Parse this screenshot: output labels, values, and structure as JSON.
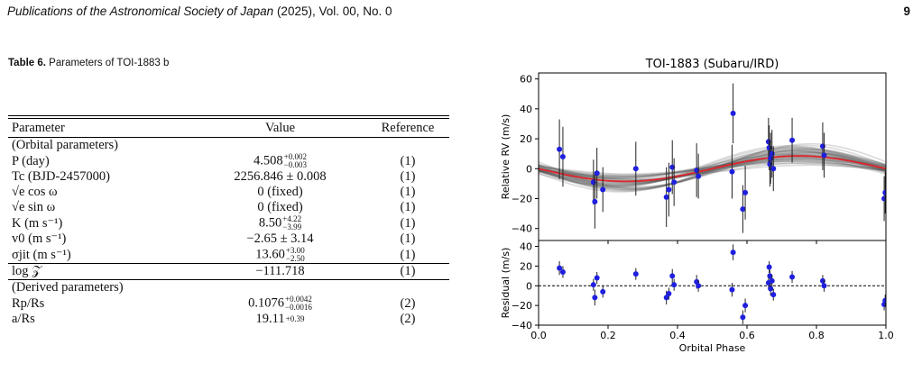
{
  "header": {
    "journal": "Publications of the Astronomical Society of Japan",
    "details": "(2025), Vol. 00, No. 0",
    "page": "9"
  },
  "table": {
    "label": "Table 6.",
    "caption": "Parameters of TOI-1883 b",
    "columns": [
      "Parameter",
      "Value",
      "Reference"
    ],
    "rows": [
      {
        "param": "(Orbital parameters)",
        "value": "",
        "ref": ""
      },
      {
        "param": "P (day)",
        "value": "4.508",
        "sup": "+0.002",
        "sub": "−0.003",
        "ref": "(1)"
      },
      {
        "param": "Tc (BJD-2457000)",
        "value": "2256.846 ± 0.008",
        "ref": "(1)"
      },
      {
        "param": "√e cos ω",
        "value": "0 (fixed)",
        "ref": "(1)"
      },
      {
        "param": "√e sin ω",
        "value": "0 (fixed)",
        "ref": "(1)"
      },
      {
        "param": "K (m s⁻¹)",
        "value": "8.50",
        "sup": "+4.22",
        "sub": "−3.99",
        "ref": "(1)"
      },
      {
        "param": "v0 (m s⁻¹)",
        "value": "−2.65 ± 3.14",
        "ref": "(1)"
      },
      {
        "param": "σjit (m s⁻¹)",
        "value": "13.60",
        "sup": "+3.00",
        "sub": "−2.50",
        "ref": "(1)"
      },
      {
        "param": "log 𝒵",
        "value": "−111.718",
        "ref": "(1)",
        "separator": true
      },
      {
        "param": "(Derived parameters)",
        "value": "",
        "ref": "",
        "separator": true
      },
      {
        "param": "Rp/Rs",
        "value": "0.1076",
        "sup": "+0.0042",
        "sub": "−0.0016",
        "ref": "(2)"
      },
      {
        "param": "a/Rs",
        "value": "19.11",
        "sup": "+0.39",
        "sub": "",
        "ref": "(2)"
      }
    ]
  },
  "chart_data": {
    "type": "scatter",
    "title": "TOI-1883 (Subaru/IRD)",
    "xlabel": "Orbital Phase",
    "panels": [
      {
        "name": "rv",
        "ylabel": "Relative RV (m/s)",
        "ylim": [
          -48,
          64
        ],
        "yticks": [
          -40,
          -20,
          0,
          20,
          40,
          60
        ],
        "points": [
          {
            "x": 0.06,
            "y": 13,
            "err": 20
          },
          {
            "x": 0.07,
            "y": 8,
            "err": 20
          },
          {
            "x": 0.158,
            "y": -9,
            "err": 15
          },
          {
            "x": 0.162,
            "y": -22,
            "err": 18
          },
          {
            "x": 0.168,
            "y": -3,
            "err": 17
          },
          {
            "x": 0.185,
            "y": -14,
            "err": 15
          },
          {
            "x": 0.28,
            "y": 0,
            "err": 18
          },
          {
            "x": 0.368,
            "y": -19,
            "err": 20
          },
          {
            "x": 0.375,
            "y": -14,
            "err": 18
          },
          {
            "x": 0.385,
            "y": 1,
            "err": 18
          },
          {
            "x": 0.39,
            "y": -9,
            "err": 16
          },
          {
            "x": 0.455,
            "y": -1,
            "err": 18
          },
          {
            "x": 0.46,
            "y": -5,
            "err": 15
          },
          {
            "x": 0.557,
            "y": -2,
            "err": 18
          },
          {
            "x": 0.56,
            "y": 37,
            "err": 20
          },
          {
            "x": 0.588,
            "y": -27,
            "err": 16
          },
          {
            "x": 0.595,
            "y": -16,
            "err": 18
          },
          {
            "x": 0.662,
            "y": 18,
            "err": 16
          },
          {
            "x": 0.664,
            "y": 14,
            "err": 15
          },
          {
            "x": 0.666,
            "y": 3,
            "err": 15
          },
          {
            "x": 0.668,
            "y": 7,
            "err": 17
          },
          {
            "x": 0.672,
            "y": 10,
            "err": 16
          },
          {
            "x": 0.676,
            "y": 0,
            "err": 15
          },
          {
            "x": 0.73,
            "y": 19,
            "err": 15
          },
          {
            "x": 0.818,
            "y": 15,
            "err": 16
          },
          {
            "x": 0.822,
            "y": 9,
            "err": 15
          },
          {
            "x": 0.995,
            "y": -20,
            "err": 15
          },
          {
            "x": 0.998,
            "y": -16,
            "err": 14
          }
        ]
      },
      {
        "name": "residual",
        "ylabel": "Residual (m/s)",
        "ylim": [
          -40,
          46
        ],
        "yticks": [
          -40,
          -20,
          0,
          20,
          40
        ],
        "points": [
          {
            "x": 0.06,
            "y": 18,
            "err": 7
          },
          {
            "x": 0.07,
            "y": 14,
            "err": 6
          },
          {
            "x": 0.158,
            "y": 1,
            "err": 6
          },
          {
            "x": 0.162,
            "y": -12,
            "err": 8
          },
          {
            "x": 0.168,
            "y": 8,
            "err": 6
          },
          {
            "x": 0.185,
            "y": -6,
            "err": 6
          },
          {
            "x": 0.28,
            "y": 12,
            "err": 6
          },
          {
            "x": 0.368,
            "y": -12,
            "err": 7
          },
          {
            "x": 0.375,
            "y": -8,
            "err": 6
          },
          {
            "x": 0.385,
            "y": 10,
            "err": 7
          },
          {
            "x": 0.39,
            "y": 1,
            "err": 6
          },
          {
            "x": 0.455,
            "y": 4,
            "err": 7
          },
          {
            "x": 0.46,
            "y": 0,
            "err": 6
          },
          {
            "x": 0.557,
            "y": -4,
            "err": 7
          },
          {
            "x": 0.56,
            "y": 34,
            "err": 8
          },
          {
            "x": 0.588,
            "y": -32,
            "err": 7
          },
          {
            "x": 0.595,
            "y": -20,
            "err": 7
          },
          {
            "x": 0.662,
            "y": 3,
            "err": 6
          },
          {
            "x": 0.664,
            "y": 19,
            "err": 6
          },
          {
            "x": 0.666,
            "y": 10,
            "err": 6
          },
          {
            "x": 0.668,
            "y": -3,
            "err": 7
          },
          {
            "x": 0.672,
            "y": 5,
            "err": 6
          },
          {
            "x": 0.676,
            "y": -9,
            "err": 6
          },
          {
            "x": 0.73,
            "y": 9,
            "err": 6
          },
          {
            "x": 0.818,
            "y": 5,
            "err": 6
          },
          {
            "x": 0.822,
            "y": 0,
            "err": 6
          },
          {
            "x": 0.995,
            "y": -19,
            "err": 6
          },
          {
            "x": 0.998,
            "y": -15,
            "err": 6
          }
        ]
      }
    ],
    "xlim": [
      0,
      1
    ],
    "xticks": [
      0.0,
      0.2,
      0.4,
      0.6,
      0.8,
      1.0
    ],
    "model": {
      "K": 8.5,
      "v0": 0.0,
      "phase_offset": 0.5
    },
    "posterior_curves": {
      "count": 40,
      "K_range": [
        4,
        15
      ]
    },
    "colors": {
      "points": "#1f1fe0",
      "model": "#e0242a",
      "posterior": "#555555"
    }
  }
}
